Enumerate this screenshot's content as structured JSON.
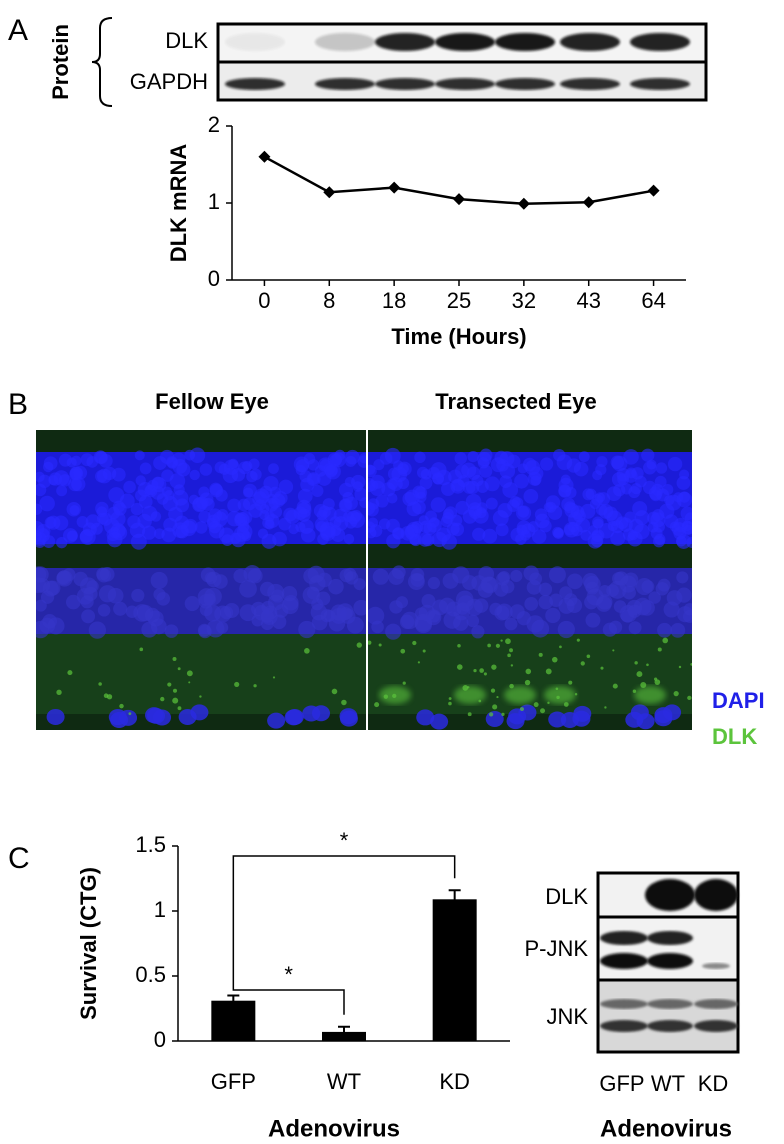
{
  "panel_labels": [
    "A",
    "B",
    "C"
  ],
  "blot_a": {
    "group_label": "Protein",
    "rows": [
      "DLK",
      "GAPDH"
    ]
  },
  "chart_data": [
    {
      "type": "line",
      "ylabel": "DLK mRNA",
      "xlabel": "Time (Hours)",
      "categories": [
        "0",
        "8",
        "18",
        "25",
        "32",
        "43",
        "64"
      ],
      "series": [
        {
          "color": "#000000",
          "values": [
            1.6,
            1.14,
            1.2,
            1.05,
            0.99,
            1.01,
            1.16
          ]
        }
      ],
      "marker": "diamond",
      "ylim": [
        0,
        2
      ],
      "yticks": [
        0,
        1,
        2
      ],
      "grid": false
    },
    {
      "type": "bar",
      "ylabel": "Survival (CTG)",
      "xlabel": "Adenovirus",
      "categories": [
        "GFP",
        "WT",
        "KD"
      ],
      "values": [
        0.31,
        0.07,
        1.09
      ],
      "errors": [
        0.04,
        0.04,
        0.07
      ],
      "color": "#000000",
      "ylim": [
        0,
        1.5
      ],
      "yticks": [
        0,
        0.5,
        1,
        1.5
      ],
      "grid": false,
      "annotations": [
        "*",
        "*"
      ]
    }
  ],
  "image_b": {
    "columns": [
      "Fellow Eye",
      "Transected Eye"
    ],
    "legend": [
      {
        "label": "DAPI",
        "color": "#2020e8"
      },
      {
        "label": "DLK",
        "color": "#5cc43c"
      }
    ]
  },
  "blot_c": {
    "rows": [
      "DLK",
      "P-JNK",
      "JNK"
    ],
    "lanes": [
      "GFP",
      "WT",
      "KD"
    ],
    "xlabel": "Adenovirus"
  }
}
